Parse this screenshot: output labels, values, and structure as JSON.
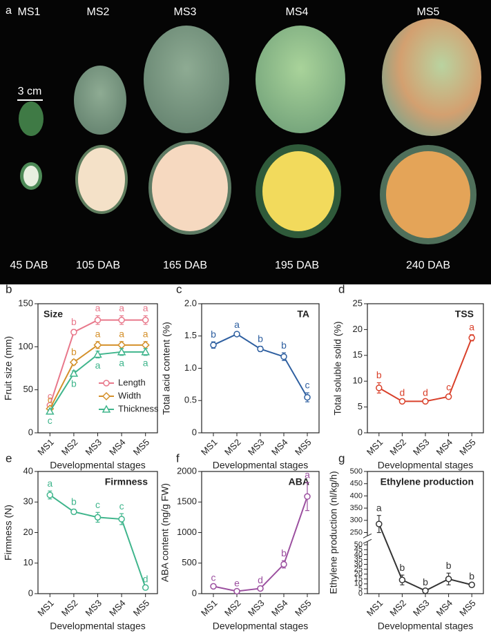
{
  "photo": {
    "panel_label": "a",
    "stages": [
      "MS1",
      "MS2",
      "MS3",
      "MS4",
      "MS5"
    ],
    "days": [
      "45 DAB",
      "105 DAB",
      "165 DAB",
      "195 DAB",
      "240 DAB"
    ],
    "scale_bar": "3 cm"
  },
  "chart_data": [
    {
      "type": "line",
      "panel_label": "b",
      "title": "Size",
      "ylabel": "Fruit size (mm)",
      "xlabel": "Developmental stages",
      "categories": [
        "MS1",
        "MS2",
        "MS3",
        "MS4",
        "MS5"
      ],
      "ylim": [
        0,
        150
      ],
      "yticks": [
        0,
        50,
        100,
        150
      ],
      "series": [
        {
          "name": "Length",
          "color": "#e8778a",
          "marker": "circle",
          "values": [
            32,
            117,
            131,
            131,
            131
          ],
          "errors": [
            2,
            3,
            5,
            5,
            5
          ],
          "letters": [
            "c",
            "b",
            "a",
            "a",
            "a"
          ]
        },
        {
          "name": "Width",
          "color": "#d4902a",
          "marker": "diamond",
          "values": [
            28,
            82,
            102,
            102,
            102
          ],
          "errors": [
            2,
            3,
            4,
            4,
            4
          ],
          "letters": [
            "c",
            "b",
            "a",
            "a",
            "a"
          ]
        },
        {
          "name": "Thickness",
          "color": "#3fb58c",
          "marker": "triangle",
          "values": [
            25,
            69,
            91,
            94,
            94
          ],
          "errors": [
            2,
            3,
            4,
            4,
            4
          ],
          "letters": [
            "c",
            "b",
            "a",
            "a",
            "a"
          ]
        }
      ]
    },
    {
      "type": "line",
      "panel_label": "c",
      "title": "TA",
      "ylabel": "Total acid content (%)",
      "xlabel": "Developmental stages",
      "categories": [
        "MS1",
        "MS2",
        "MS3",
        "MS4",
        "MS5"
      ],
      "ylim": [
        0,
        2
      ],
      "yticks": [
        0,
        0.5,
        {
          "value": 1,
          "label": "1.0"
        },
        1.5,
        {
          "value": 2,
          "label": "2.0"
        }
      ],
      "series": [
        {
          "color": "#2e5fa0",
          "marker": "circle",
          "values": [
            1.36,
            1.53,
            1.3,
            1.18,
            0.55
          ],
          "errors": [
            0.05,
            0.03,
            0.04,
            0.06,
            0.07
          ],
          "letters": [
            "b",
            "a",
            "b",
            "b",
            "c"
          ]
        }
      ]
    },
    {
      "type": "line",
      "panel_label": "d",
      "title": "TSS",
      "ylabel": "Total soluble solid (%)",
      "xlabel": "Developmental stages",
      "categories": [
        "MS1",
        "MS2",
        "MS3",
        "MS4",
        "MS5"
      ],
      "ylim": [
        0,
        25
      ],
      "yticks": [
        0,
        5,
        10,
        15,
        20,
        25
      ],
      "series": [
        {
          "color": "#d9402a",
          "marker": "circle",
          "values": [
            8.7,
            6.1,
            6.1,
            7.0,
            18.4
          ],
          "errors": [
            1.0,
            0.2,
            0.2,
            0.4,
            0.6
          ],
          "letters": [
            "b",
            "d",
            "d",
            "c",
            "a"
          ]
        }
      ]
    },
    {
      "type": "line",
      "panel_label": "e",
      "title": "Firmness",
      "ylabel": "Firmness (N)",
      "xlabel": "Developmental stages",
      "categories": [
        "MS1",
        "MS2",
        "MS3",
        "MS4",
        "MS5"
      ],
      "ylim": [
        0,
        40
      ],
      "yticks": [
        0,
        10,
        20,
        30,
        40
      ],
      "series": [
        {
          "color": "#3fb58c",
          "marker": "circle",
          "values": [
            32.3,
            26.8,
            25.0,
            24.4,
            2.0
          ],
          "errors": [
            1.3,
            0.8,
            1.6,
            1.8,
            0.3
          ],
          "letters": [
            "a",
            "b",
            "c",
            "c",
            "d"
          ]
        }
      ]
    },
    {
      "type": "line",
      "panel_label": "f",
      "title": "ABA",
      "ylabel": "ABA content (ng/g FW)",
      "xlabel": "Developmental stages",
      "categories": [
        "MS1",
        "MS2",
        "MS3",
        "MS4",
        "MS5"
      ],
      "ylim": [
        0,
        2000
      ],
      "yticks": [
        0,
        500,
        1000,
        1500,
        2000
      ],
      "series": [
        {
          "color": "#9b4f9f",
          "marker": "circle",
          "values": [
            120,
            40,
            85,
            480,
            1590
          ],
          "errors": [
            20,
            10,
            15,
            60,
            230
          ],
          "letters": [
            "c",
            "e",
            "d",
            "b",
            "a"
          ]
        }
      ]
    },
    {
      "type": "line",
      "panel_label": "g",
      "title": "Ethylene production",
      "ylabel": "Ethylene production (nl/kg/h)",
      "xlabel": "Developmental stages",
      "categories": [
        "MS1",
        "MS2",
        "MS3",
        "MS4",
        "MS5"
      ],
      "ylim": [
        0,
        500
      ],
      "ybreak": [
        50,
        250
      ],
      "yticks": [
        0,
        5,
        10,
        15,
        20,
        25,
        30,
        35,
        40,
        45,
        50,
        250,
        300,
        350,
        400,
        450,
        500
      ],
      "series": [
        {
          "color": "#333333",
          "marker": "circle",
          "values": [
            285,
            14,
            3,
            15,
            9
          ],
          "errors": [
            35,
            5,
            1,
            6,
            1
          ],
          "letters": [
            "a",
            "b",
            "b",
            "b",
            "b"
          ]
        }
      ]
    }
  ]
}
